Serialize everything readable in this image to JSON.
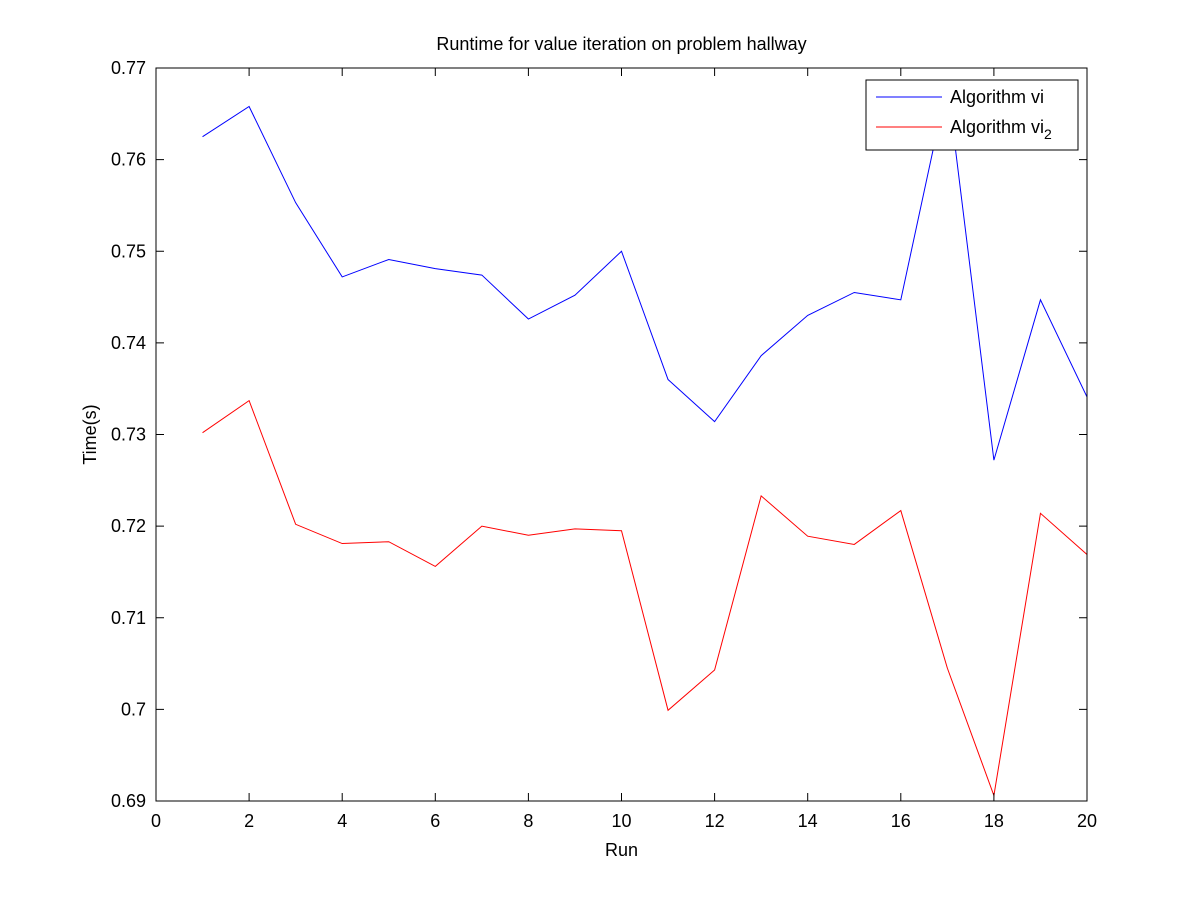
{
  "chart_data": {
    "type": "line",
    "title": "Runtime for value iteration on problem hallway",
    "xlabel": "Run",
    "ylabel": "Time(s)",
    "xlim": [
      0,
      20
    ],
    "ylim": [
      0.69,
      0.77
    ],
    "xticks": [
      0,
      2,
      4,
      6,
      8,
      10,
      12,
      14,
      16,
      18,
      20
    ],
    "yticks": [
      0.69,
      0.7,
      0.71,
      0.72,
      0.73,
      0.74,
      0.75,
      0.76,
      0.77
    ],
    "ytick_labels": [
      "0.69",
      "0.7",
      "0.71",
      "0.72",
      "0.73",
      "0.74",
      "0.75",
      "0.76",
      "0.77"
    ],
    "grid": false,
    "legend_position": "top-right",
    "x": [
      1,
      2,
      3,
      4,
      5,
      6,
      7,
      8,
      9,
      10,
      11,
      12,
      13,
      14,
      15,
      16,
      17,
      18,
      19,
      20
    ],
    "series": [
      {
        "name": "Algorithm vi",
        "color": "#0000ff",
        "values": [
          0.7625,
          0.7658,
          0.7553,
          0.7472,
          0.7491,
          0.7481,
          0.7474,
          0.7426,
          0.7452,
          0.75,
          0.736,
          0.7314,
          0.7386,
          0.743,
          0.7455,
          0.7447,
          0.7683,
          0.7272,
          0.7447,
          0.7341
        ]
      },
      {
        "name_main": "Algorithm vi",
        "name_sub": "2",
        "color": "#ff0000",
        "values": [
          0.7302,
          0.7337,
          0.7202,
          0.7181,
          0.7183,
          0.7156,
          0.72,
          0.719,
          0.7197,
          0.7195,
          0.6999,
          0.7043,
          0.7233,
          0.7189,
          0.718,
          0.7217,
          0.7045,
          0.6906,
          0.7214,
          0.7169
        ]
      }
    ]
  }
}
